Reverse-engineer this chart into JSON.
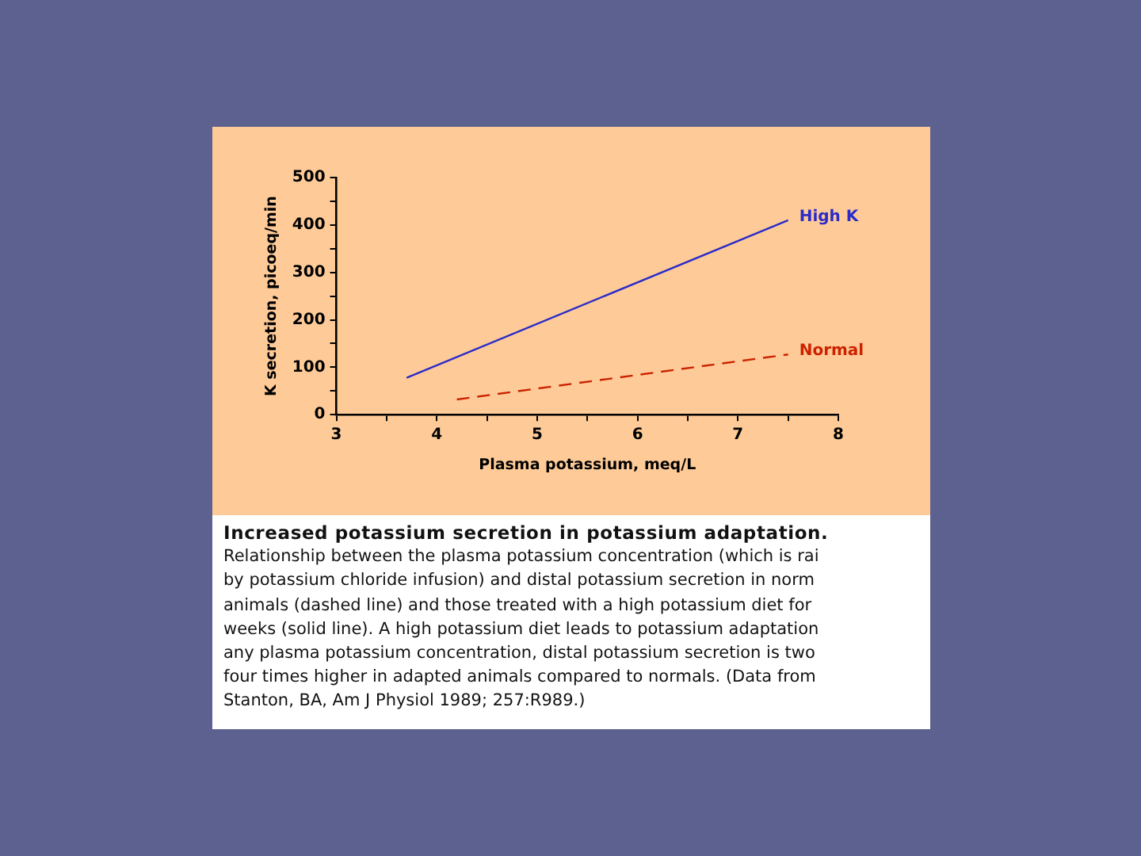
{
  "chart_data": {
    "type": "line",
    "xlabel": "Plasma potassium, meq/L",
    "ylabel": "K secretion, picoeq/min",
    "series": [
      {
        "name": "High K",
        "color": "#2b2bc8",
        "x": [
          3.7,
          7.5
        ],
        "values": [
          78,
          410
        ],
        "line_style": "solid"
      },
      {
        "name": "Normal",
        "color": "#cc2200",
        "x": [
          4.2,
          7.5
        ],
        "values": [
          32,
          127
        ],
        "line_style": "dashed"
      }
    ],
    "xlim": [
      3,
      8
    ],
    "xticks": [
      3,
      {
        "value": 3.5,
        "label": null
      },
      4,
      {
        "value": 4.5,
        "label": null
      },
      5,
      {
        "value": 5.5,
        "label": null
      },
      6,
      {
        "value": 6.5,
        "label": null
      },
      7,
      {
        "value": 7.5,
        "label": null
      },
      8
    ],
    "ylim": [
      0,
      500
    ],
    "yticks": [
      0,
      {
        "value": 50,
        "label": null
      },
      100,
      {
        "value": 150,
        "label": null
      },
      200,
      {
        "value": 250,
        "label": null
      },
      300,
      {
        "value": 350,
        "label": null
      },
      400,
      {
        "value": 450,
        "label": null
      },
      500
    ],
    "grid": false,
    "legend": false,
    "marker": "none",
    "annotations": [
      "Increased potassium secretion in potassium adaptation.",
      "Relationship between the plasma potassium concentration (which is rai\nby potassium chloride infusion) and distal potassium secretion in norm\nanimals (dashed line) and those treated with a high potassium diet for\nweeks (solid line). A high potassium diet leads to potassium adaptation\nany plasma potassium concentration, distal potassium secretion is two\nfour times higher in adapted animals compared to normals. (Data from\nStanton, BA, Am J Physiol 1989; 257:R989.)"
    ]
  }
}
